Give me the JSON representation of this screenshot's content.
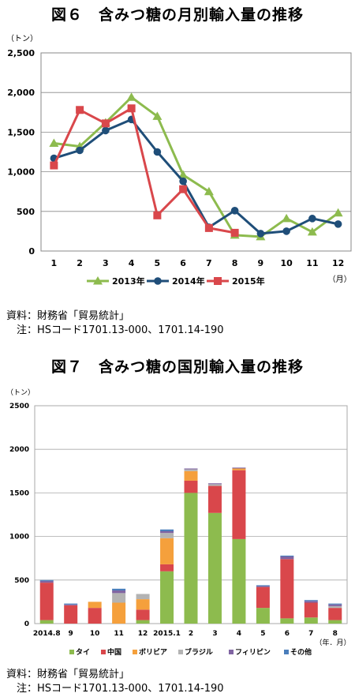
{
  "figure6": {
    "title": "図６　含みつ糖の月別輸入量の推移",
    "source": "資料：財務省「貿易統計」",
    "note": "　注：HSコード1701.13-000、1701.14-190"
  },
  "figure7": {
    "title": "図７　含みつ糖の国別輸入量の推移",
    "source": "資料：財務省「貿易統計」",
    "note": "　注：HSコード1701.13-000、1701.14-190"
  },
  "chart_data": [
    {
      "type": "line",
      "y_unit": "（トン）",
      "x_unit": "（月）",
      "ylim": [
        0,
        2500
      ],
      "y_ticks": [
        "0",
        "500",
        "1,000",
        "1,500",
        "2,000",
        "2,500"
      ],
      "y_tick_values": [
        0,
        500,
        1000,
        1500,
        2000,
        2500
      ],
      "categories": [
        "1",
        "2",
        "3",
        "4",
        "5",
        "6",
        "7",
        "8",
        "9",
        "10",
        "11",
        "12"
      ],
      "grid": true,
      "legend_position": "bottom",
      "series": [
        {
          "name": "2013年",
          "color": "#8dbb4e",
          "marker": "triangle",
          "values": [
            1360,
            1320,
            1620,
            1940,
            1700,
            960,
            750,
            200,
            180,
            410,
            240,
            480
          ]
        },
        {
          "name": "2014年",
          "color": "#1f4e79",
          "marker": "circle",
          "values": [
            1170,
            1270,
            1520,
            1660,
            1250,
            880,
            300,
            510,
            220,
            250,
            410,
            340
          ]
        },
        {
          "name": "2015年",
          "color": "#d9474b",
          "marker": "square",
          "values": [
            1080,
            1780,
            1610,
            1800,
            450,
            780,
            290,
            230,
            null,
            null,
            null,
            null
          ]
        }
      ]
    },
    {
      "type": "bar",
      "stacked": true,
      "y_unit": "（トン）",
      "x_unit": "（年．月）",
      "ylim": [
        0,
        2500
      ],
      "y_ticks": [
        "0",
        "500",
        "1000",
        "1500",
        "2000",
        "2500"
      ],
      "y_tick_values": [
        0,
        500,
        1000,
        1500,
        2000,
        2500
      ],
      "categories": [
        "2014.8",
        "9",
        "10",
        "11",
        "12",
        "2015.1",
        "2",
        "3",
        "4",
        "5",
        "6",
        "7",
        "8"
      ],
      "grid": true,
      "legend_position": "bottom",
      "series": [
        {
          "name": "タイ",
          "color": "#8dbb4e",
          "values": [
            40,
            0,
            0,
            0,
            40,
            600,
            1500,
            1270,
            970,
            180,
            60,
            70,
            40
          ]
        },
        {
          "name": "中国",
          "color": "#d9474b",
          "values": [
            430,
            210,
            180,
            0,
            120,
            80,
            140,
            310,
            790,
            240,
            680,
            170,
            140
          ]
        },
        {
          "name": "ボリビア",
          "color": "#f5a03c",
          "values": [
            0,
            0,
            70,
            240,
            120,
            300,
            110,
            0,
            20,
            0,
            0,
            0,
            0
          ]
        },
        {
          "name": "ブラジル",
          "color": "#b3b3b3",
          "values": [
            0,
            0,
            0,
            110,
            60,
            60,
            20,
            20,
            0,
            0,
            0,
            0,
            20
          ]
        },
        {
          "name": "フィリピン",
          "color": "#8064a2",
          "values": [
            20,
            10,
            0,
            30,
            0,
            20,
            10,
            10,
            10,
            10,
            30,
            20,
            20
          ]
        },
        {
          "name": "その他",
          "color": "#4a7ebb",
          "values": [
            10,
            10,
            0,
            20,
            0,
            20,
            0,
            0,
            0,
            10,
            10,
            10,
            10
          ]
        }
      ]
    }
  ]
}
